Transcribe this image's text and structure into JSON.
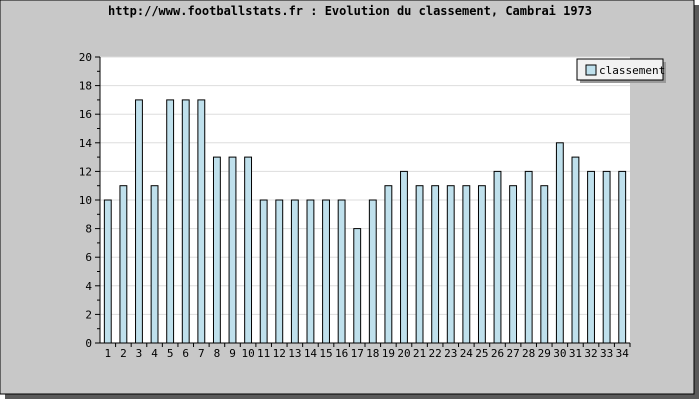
{
  "chart_data": {
    "type": "bar",
    "title": "http://www.footballstats.fr : Evolution du classement, Cambrai 1973",
    "xlabel": "",
    "ylabel": "",
    "categories": [
      "1",
      "2",
      "3",
      "4",
      "5",
      "6",
      "7",
      "8",
      "9",
      "10",
      "11",
      "12",
      "13",
      "14",
      "15",
      "16",
      "17",
      "18",
      "19",
      "20",
      "21",
      "22",
      "23",
      "24",
      "25",
      "26",
      "27",
      "28",
      "29",
      "30",
      "31",
      "32",
      "33",
      "34"
    ],
    "series": [
      {
        "name": "classement",
        "values": [
          10,
          11,
          17,
          11,
          17,
          17,
          17,
          13,
          13,
          13,
          10,
          10,
          10,
          10,
          10,
          10,
          8,
          10,
          11,
          12,
          11,
          11,
          11,
          11,
          11,
          12,
          11,
          12,
          11,
          14,
          13,
          12,
          12,
          12
        ]
      }
    ],
    "ylim": [
      0,
      20
    ],
    "yticks": [
      "0",
      "2",
      "4",
      "6",
      "8",
      "10",
      "12",
      "14",
      "16",
      "18",
      "20"
    ],
    "grid": true,
    "legend_position": "top-right",
    "colors": {
      "bar_fill": "#bfe0ec",
      "bar_stroke": "#000000",
      "outer_background": "#c8c8c8",
      "plot_background": "#ffffff",
      "gridline": "#dddddd",
      "legend_background": "#f2f2f2"
    }
  }
}
